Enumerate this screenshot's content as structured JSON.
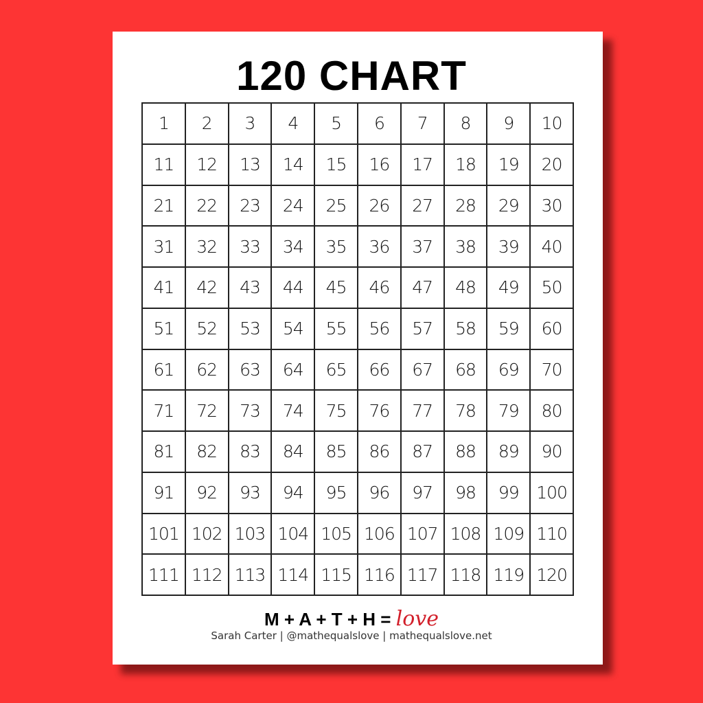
{
  "title": "120 CHART",
  "colors": {
    "background": "#fd3434",
    "paper": "#ffffff",
    "love": "#d21f2a"
  },
  "grid": [
    [
      1,
      2,
      3,
      4,
      5,
      6,
      7,
      8,
      9,
      10
    ],
    [
      11,
      12,
      13,
      14,
      15,
      16,
      17,
      18,
      19,
      20
    ],
    [
      21,
      22,
      23,
      24,
      25,
      26,
      27,
      28,
      29,
      30
    ],
    [
      31,
      32,
      33,
      34,
      35,
      36,
      37,
      38,
      39,
      40
    ],
    [
      41,
      42,
      43,
      44,
      45,
      46,
      47,
      48,
      49,
      50
    ],
    [
      51,
      52,
      53,
      54,
      55,
      56,
      57,
      58,
      59,
      60
    ],
    [
      61,
      62,
      63,
      64,
      65,
      66,
      67,
      68,
      69,
      70
    ],
    [
      71,
      72,
      73,
      74,
      75,
      76,
      77,
      78,
      79,
      80
    ],
    [
      81,
      82,
      83,
      84,
      85,
      86,
      87,
      88,
      89,
      90
    ],
    [
      91,
      92,
      93,
      94,
      95,
      96,
      97,
      98,
      99,
      100
    ],
    [
      101,
      102,
      103,
      104,
      105,
      106,
      107,
      108,
      109,
      110
    ],
    [
      111,
      112,
      113,
      114,
      115,
      116,
      117,
      118,
      119,
      120
    ]
  ],
  "footer": {
    "brand_formula": "M + A + T + H =",
    "brand_word": "love",
    "credit": "Sarah Carter | @mathequalslove | mathequalslove.net"
  }
}
